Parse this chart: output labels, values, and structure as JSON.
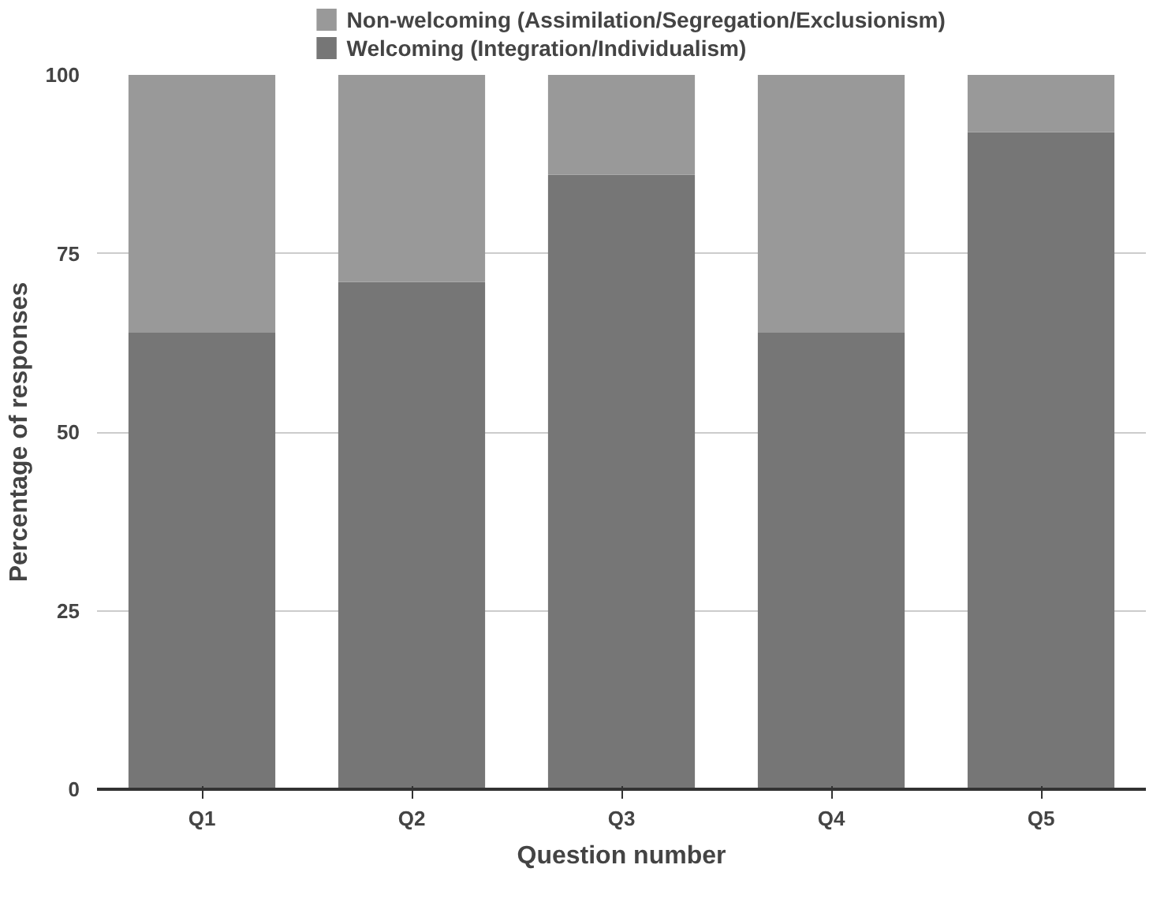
{
  "chart_data": {
    "type": "bar",
    "stacked": true,
    "xlabel": "Question number",
    "ylabel": "Percentage of responses",
    "categories": [
      "Q1",
      "Q2",
      "Q3",
      "Q4",
      "Q5"
    ],
    "series": [
      {
        "name": "Welcoming (Integration/Individualism)",
        "color": "#767676",
        "values": [
          64,
          71,
          86,
          64,
          92
        ]
      },
      {
        "name": "Non-welcoming (Assimilation/Segregation/Exclusionism)",
        "color": "#999999",
        "values": [
          36,
          29,
          14,
          36,
          8
        ]
      }
    ],
    "ylim": [
      0,
      100
    ],
    "yticks": [
      0,
      25,
      50,
      75,
      100
    ],
    "grid": "y",
    "legend": "top"
  }
}
